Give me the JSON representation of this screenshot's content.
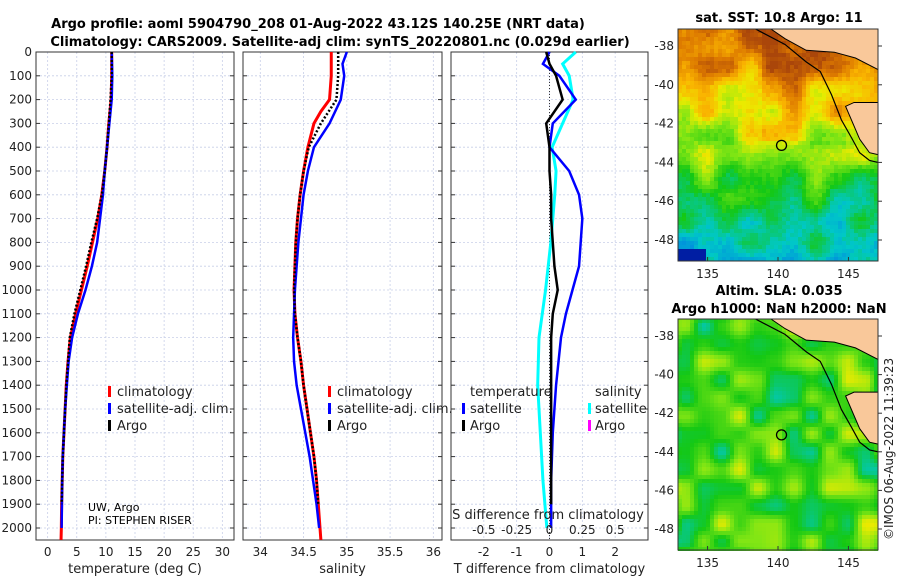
{
  "title": {
    "line1": "Argo profile: aoml 5904790_208 01-Aug-2022 43.12S 140.25E (NRT data)",
    "line2": "Climatology: CARS2009. Satellite-adj clim: synTS_20220801.nc (0.029d earlier)"
  },
  "credit": {
    "line1": "UW, Argo",
    "line2": "PI: STEPHEN RISER"
  },
  "timestamp": "©IMOS 06-Aug-2022 11:39:23",
  "colors": {
    "climatology": "#ff0000",
    "satellite": "#0000ff",
    "argo": "#000000",
    "sal_satellite": "#00ffff",
    "sal_argo": "#ff00ff"
  },
  "chart_data": [
    {
      "type": "line",
      "name": "temperature",
      "xlabel": "temperature (deg C)",
      "ylabel": "",
      "xlim": [
        -2,
        32
      ],
      "ylim": [
        2050,
        0
      ],
      "xticks": [
        0,
        5,
        10,
        15,
        20,
        25,
        30
      ],
      "yticks": [
        0,
        100,
        200,
        300,
        400,
        500,
        600,
        700,
        800,
        900,
        1000,
        1100,
        1200,
        1300,
        1400,
        1500,
        1600,
        1700,
        1800,
        1900,
        2000
      ],
      "grid": true,
      "legend": {
        "position": "center-right",
        "items": [
          "climatology",
          "satellite-adj. clim.",
          "Argo"
        ]
      },
      "series": [
        {
          "name": "climatology",
          "depth": [
            0,
            100,
            200,
            300,
            400,
            500,
            600,
            700,
            800,
            900,
            1000,
            1100,
            1200,
            1300,
            1400,
            1500,
            1600,
            1700,
            1800,
            1900,
            2000,
            2050
          ],
          "values": [
            11,
            11,
            10.9,
            10.5,
            10.2,
            9.8,
            9.3,
            8.6,
            7.7,
            6.8,
            5.8,
            4.8,
            3.9,
            3.5,
            3.2,
            3.0,
            2.8,
            2.6,
            2.5,
            2.4,
            2.35,
            2.3
          ]
        },
        {
          "name": "satellite-adj. clim.",
          "depth": [
            0,
            100,
            200,
            300,
            400,
            500,
            600,
            700,
            800,
            900,
            1000,
            1100,
            1200,
            1300,
            1400,
            1500,
            1600,
            1700,
            1800,
            1900,
            2000
          ],
          "values": [
            11,
            11.1,
            11,
            10.6,
            10.2,
            9.8,
            9.5,
            9.0,
            8.5,
            7.6,
            6.5,
            5.2,
            4.2,
            3.6,
            3.3,
            3.0,
            2.8,
            2.6,
            2.5,
            2.45,
            2.4
          ]
        },
        {
          "name": "Argo",
          "depth": [
            0,
            100,
            200,
            300,
            400,
            500,
            600,
            700,
            800,
            900,
            1000,
            1100,
            1200,
            1300,
            1400,
            1500,
            1600,
            1700,
            1800,
            1900
          ],
          "values": [
            11,
            11,
            10.8,
            10.5,
            10.2,
            9.8,
            9.3,
            8.5,
            7.5,
            6.6,
            5.6,
            4.6,
            3.8,
            3.5,
            3.2,
            3.0,
            2.8,
            2.6,
            2.5,
            2.4
          ]
        }
      ]
    },
    {
      "type": "line",
      "name": "salinity",
      "xlabel": "salinity",
      "xlim": [
        33.8,
        36.1
      ],
      "ylim": [
        2050,
        0
      ],
      "xticks": [
        34,
        34.5,
        35,
        35.5,
        36
      ],
      "grid": true,
      "legend": {
        "position": "center-right",
        "items": [
          "climatology",
          "satellite-adj. clim.",
          "Argo"
        ]
      },
      "series": [
        {
          "name": "climatology",
          "depth": [
            0,
            100,
            200,
            250,
            300,
            400,
            500,
            600,
            700,
            800,
            900,
            1000,
            1100,
            1200,
            1300,
            1400,
            1500,
            1600,
            1700,
            1800,
            1900,
            2000,
            2050
          ],
          "values": [
            34.82,
            34.82,
            34.8,
            34.7,
            34.62,
            34.55,
            34.5,
            34.46,
            34.43,
            34.41,
            34.4,
            34.39,
            34.4,
            34.43,
            34.47,
            34.5,
            34.54,
            34.58,
            34.62,
            34.65,
            34.67,
            34.69,
            34.7
          ]
        },
        {
          "name": "satellite-adj. clim.",
          "depth": [
            0,
            50,
            100,
            200,
            300,
            400,
            500,
            600,
            700,
            800,
            900,
            1000,
            1100,
            1200,
            1300,
            1400,
            1500,
            1600,
            1700,
            1800,
            1900,
            2000
          ],
          "values": [
            35.0,
            34.95,
            34.97,
            34.93,
            34.8,
            34.62,
            34.55,
            34.5,
            34.47,
            34.44,
            34.42,
            34.4,
            34.39,
            34.38,
            34.39,
            34.42,
            34.47,
            34.52,
            34.57,
            34.61,
            34.65,
            34.68
          ]
        },
        {
          "name": "Argo",
          "depth": [
            0,
            100,
            200,
            300,
            400,
            500,
            600,
            700,
            800,
            900,
            1000,
            1100,
            1200,
            1300,
            1400,
            1500,
            1600,
            1700,
            1800,
            1900
          ],
          "values": [
            34.9,
            34.9,
            34.88,
            34.7,
            34.56,
            34.5,
            34.46,
            34.43,
            34.41,
            34.4,
            34.39,
            34.4,
            34.43,
            34.47,
            34.5,
            34.54,
            34.58,
            34.62,
            34.65,
            34.67
          ]
        }
      ]
    },
    {
      "type": "line",
      "name": "difference",
      "xlabel": "T difference from climatology",
      "x2label": "S difference from climatology",
      "xlim": [
        -3,
        3
      ],
      "ylim": [
        2050,
        0
      ],
      "xticks": [
        -2,
        -1,
        0,
        1,
        2
      ],
      "x2ticks": [
        "-0.5",
        "-0.25",
        "0",
        "0.25",
        "0.5"
      ],
      "grid": true,
      "legend": {
        "temperature_title": "temperature",
        "salinity_title": "salinity",
        "items_t": [
          "satellite",
          "Argo"
        ],
        "items_s": [
          "satellite",
          "Argo"
        ]
      },
      "series": [
        {
          "name": "T satellite",
          "depth": [
            0,
            50,
            100,
            200,
            300,
            400,
            500,
            600,
            700,
            800,
            900,
            1000,
            1100,
            1200,
            1400,
            1600,
            1800,
            2000
          ],
          "values": [
            0,
            -0.2,
            0.3,
            0.8,
            0.1,
            0,
            0.6,
            0.9,
            1.0,
            0.95,
            0.9,
            0.7,
            0.5,
            0.35,
            0.2,
            0.1,
            0.05,
            0.05
          ]
        },
        {
          "name": "T Argo",
          "depth": [
            0,
            50,
            100,
            200,
            300,
            400,
            500,
            600,
            700,
            800,
            900,
            1000,
            1100,
            1200,
            1400,
            1600,
            1800,
            1900
          ],
          "values": [
            -0.1,
            0,
            0.2,
            0.4,
            -0.1,
            0,
            0,
            0.05,
            0.05,
            0.1,
            0.15,
            0.25,
            0.1,
            0.05,
            0.05,
            0.05,
            0.05,
            0.05
          ]
        },
        {
          "name": "S satellite",
          "depth": [
            0,
            50,
            100,
            200,
            300,
            400,
            500,
            600,
            800,
            1000,
            1200,
            1400,
            1600,
            1800,
            2000
          ],
          "values": [
            0.2,
            0.1,
            0.15,
            0.18,
            0.1,
            0.02,
            0.05,
            0.04,
            0.01,
            -0.03,
            -0.08,
            -0.09,
            -0.07,
            -0.05,
            -0.02
          ]
        }
      ]
    },
    {
      "type": "heatmap",
      "name": "sst-map",
      "title": "sat. SST: 10.8 Argo: 11",
      "xlim": [
        132.9,
        147.1
      ],
      "ylim": [
        -49.1,
        -37.1
      ],
      "xticks": [
        135,
        140,
        145
      ],
      "yticks": [
        -38,
        -40,
        -42,
        -44,
        -46,
        -48
      ],
      "marker": {
        "lon": 140.25,
        "lat": -43.12
      }
    },
    {
      "type": "heatmap",
      "name": "sla-map",
      "title": "Altim. SLA: 0.035",
      "subtitle": "Argo h1000: NaN h2000: NaN",
      "xlim": [
        132.9,
        147.1
      ],
      "ylim": [
        -49.1,
        -37.1
      ],
      "xticks": [
        135,
        140,
        145
      ],
      "yticks": [
        -38,
        -40,
        -42,
        -44,
        -46,
        -48
      ],
      "marker": {
        "lon": 140.25,
        "lat": -43.12
      }
    }
  ]
}
